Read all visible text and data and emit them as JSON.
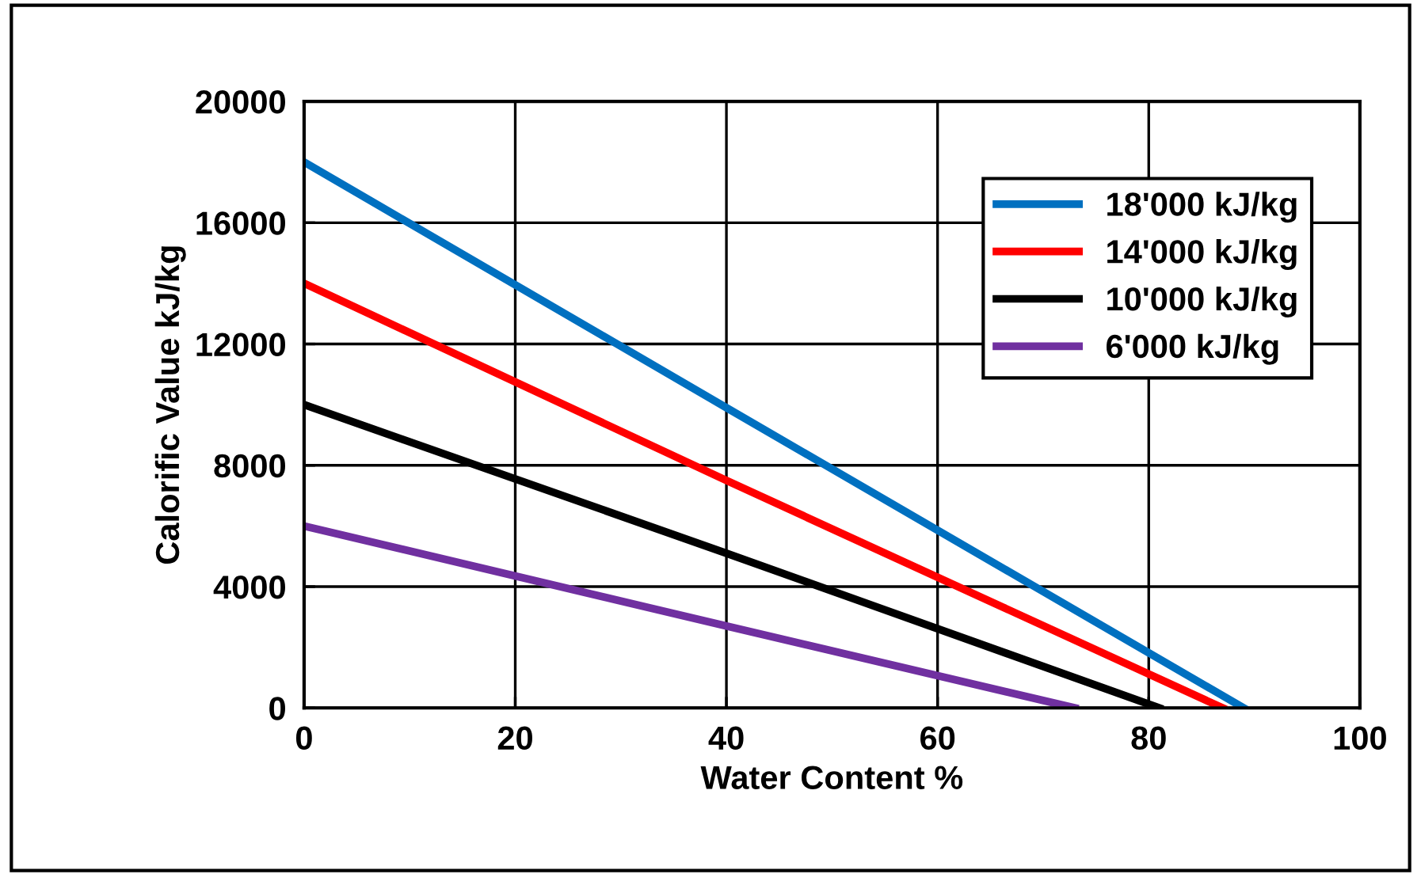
{
  "chart_data": {
    "type": "line",
    "xlabel": "Water Content %",
    "ylabel": "Calorific Value kJ/kg",
    "series": [
      {
        "name": "18'000 kJ/kg",
        "color": "#0070c0",
        "x": [
          0,
          40,
          89
        ],
        "values": [
          18000,
          9900,
          0
        ]
      },
      {
        "name": "14'000 kJ/kg",
        "color": "#ff0000",
        "x": [
          0,
          40,
          87
        ],
        "values": [
          14000,
          7500,
          0
        ]
      },
      {
        "name": "10'000 kJ/kg",
        "color": "#000000",
        "x": [
          0,
          40,
          81
        ],
        "values": [
          10000,
          5100,
          0
        ]
      },
      {
        "name": "6'000 kJ/kg",
        "color": "#7030a0",
        "x": [
          0,
          40,
          73
        ],
        "values": [
          6000,
          2700,
          0
        ]
      }
    ],
    "xlim": [
      0,
      100
    ],
    "xticks": [
      0,
      20,
      40,
      60,
      80,
      100
    ],
    "ylim": [
      0,
      20000
    ],
    "yticks": [
      0,
      4000,
      8000,
      12000,
      16000,
      20000
    ],
    "grid": true,
    "legend": "top right",
    "line_style": "solid",
    "marker": "none"
  }
}
